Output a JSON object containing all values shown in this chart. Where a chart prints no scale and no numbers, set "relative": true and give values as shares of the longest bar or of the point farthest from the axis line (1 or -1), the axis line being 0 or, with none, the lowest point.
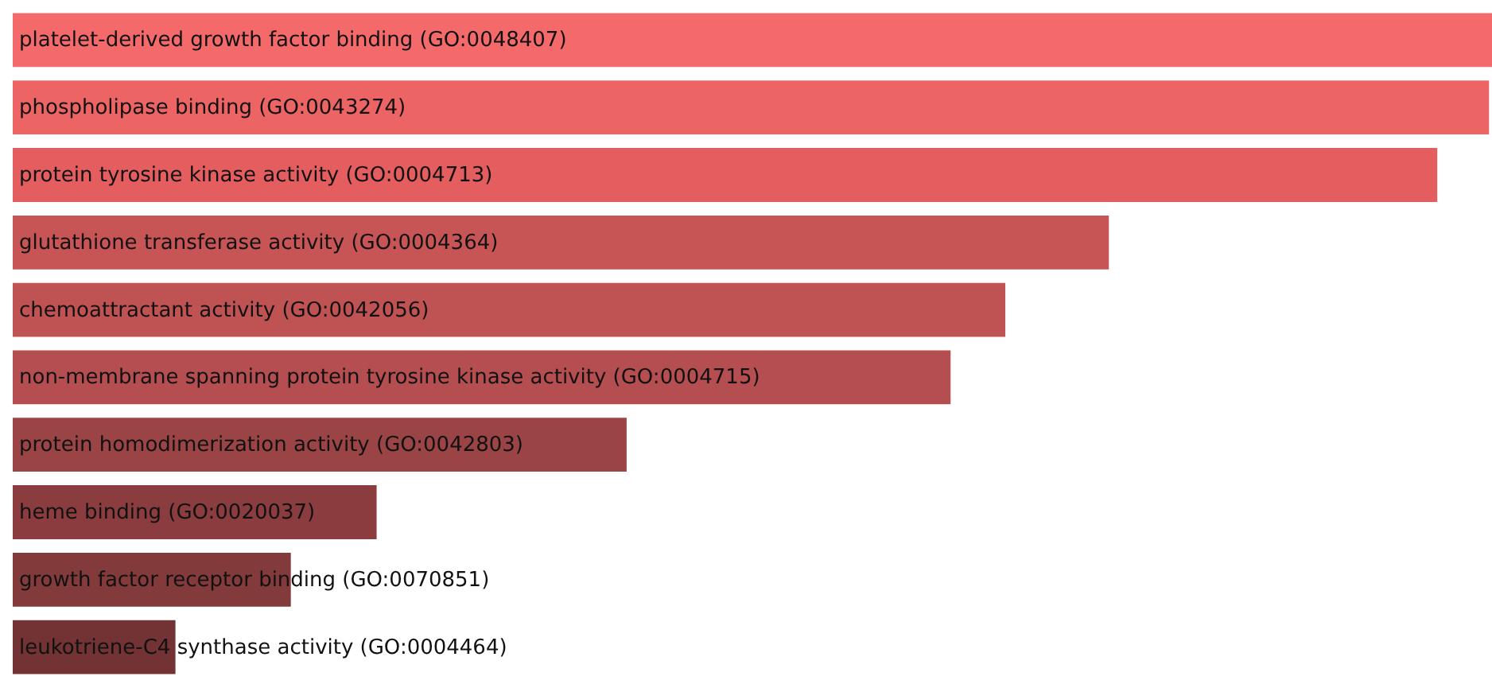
{
  "chart_data": {
    "type": "bar",
    "orientation": "horizontal",
    "relative": true,
    "categories": [
      "platelet-derived growth factor binding (GO:0048407)",
      "phospholipase binding (GO:0043274)",
      "protein tyrosine kinase activity (GO:0004713)",
      "glutathione transferase activity (GO:0004364)",
      "chemoattractant activity (GO:0042056)",
      "non-membrane spanning protein tyrosine kinase activity (GO:0004715)",
      "protein homodimerization activity (GO:0042803)",
      "heme binding (GO:0020037)",
      "growth factor receptor binding (GO:0070851)",
      "leukotriene-C4 synthase activity (GO:0004464)"
    ],
    "values": [
      1,
      0.998,
      0.963,
      0.741,
      0.671,
      0.634,
      0.415,
      0.246,
      0.188,
      0.11
    ],
    "colors": [
      "#f46a6a",
      "#ec6464",
      "#e45e60",
      "#c75556",
      "#bf5253",
      "#b54e50",
      "#9a4446",
      "#8a3c3e",
      "#823a3b",
      "#733334"
    ]
  }
}
